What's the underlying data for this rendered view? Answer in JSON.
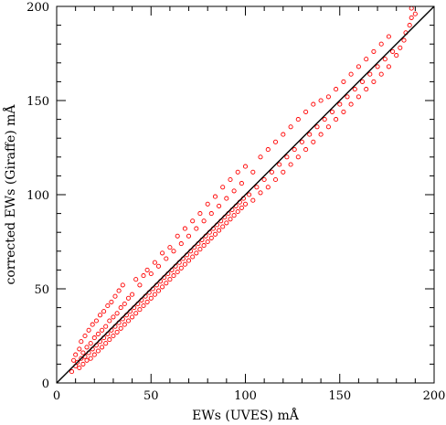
{
  "chart_data": {
    "type": "scatter",
    "xlabel": "EWs (UVES) mÅ",
    "ylabel": "corrected EWs (Giraffe) mÅ",
    "xlim": [
      0,
      200
    ],
    "ylim": [
      0,
      200
    ],
    "x_ticks": [
      "0",
      "50",
      "100",
      "150",
      "200"
    ],
    "y_ticks": [
      "0",
      "50",
      "100",
      "150",
      "200"
    ],
    "grid": false,
    "reference_line": {
      "from": [
        0,
        0
      ],
      "to": [
        200,
        200
      ],
      "color": "#000000"
    },
    "marker": {
      "shape": "open-circle",
      "color": "#ff0000"
    },
    "series": [
      {
        "color": "#ff0000",
        "points": [
          [
            8,
            6
          ],
          [
            9,
            12
          ],
          [
            10,
            9
          ],
          [
            10,
            15
          ],
          [
            11,
            11
          ],
          [
            12,
            8
          ],
          [
            12,
            18
          ],
          [
            13,
            13
          ],
          [
            13,
            22
          ],
          [
            14,
            10
          ],
          [
            14,
            16
          ],
          [
            15,
            14
          ],
          [
            15,
            25
          ],
          [
            16,
            12
          ],
          [
            16,
            19
          ],
          [
            17,
            16
          ],
          [
            17,
            28
          ],
          [
            18,
            13
          ],
          [
            18,
            21
          ],
          [
            19,
            18
          ],
          [
            19,
            31
          ],
          [
            20,
            15
          ],
          [
            20,
            24
          ],
          [
            21,
            20
          ],
          [
            21,
            33
          ],
          [
            22,
            17
          ],
          [
            22,
            26
          ],
          [
            23,
            22
          ],
          [
            23,
            36
          ],
          [
            24,
            19
          ],
          [
            24,
            28
          ],
          [
            25,
            24
          ],
          [
            25,
            38
          ],
          [
            26,
            21
          ],
          [
            26,
            30
          ],
          [
            27,
            26
          ],
          [
            27,
            41
          ],
          [
            28,
            23
          ],
          [
            28,
            33
          ],
          [
            29,
            28
          ],
          [
            29,
            43
          ],
          [
            30,
            25
          ],
          [
            30,
            35
          ],
          [
            31,
            30
          ],
          [
            31,
            46
          ],
          [
            32,
            27
          ],
          [
            32,
            37
          ],
          [
            33,
            32
          ],
          [
            33,
            49
          ],
          [
            34,
            29
          ],
          [
            34,
            40
          ],
          [
            35,
            34
          ],
          [
            35,
            52
          ],
          [
            36,
            31
          ],
          [
            36,
            42
          ],
          [
            37,
            36
          ],
          [
            38,
            33
          ],
          [
            38,
            45
          ],
          [
            39,
            38
          ],
          [
            40,
            35
          ],
          [
            40,
            47
          ],
          [
            41,
            40
          ],
          [
            42,
            37
          ],
          [
            42,
            55
          ],
          [
            43,
            42
          ],
          [
            44,
            39
          ],
          [
            44,
            52
          ],
          [
            45,
            44
          ],
          [
            46,
            41
          ],
          [
            46,
            57
          ],
          [
            47,
            46
          ],
          [
            48,
            43
          ],
          [
            48,
            60
          ],
          [
            49,
            48
          ],
          [
            50,
            45
          ],
          [
            50,
            58
          ],
          [
            51,
            50
          ],
          [
            52,
            47
          ],
          [
            52,
            64
          ],
          [
            53,
            52
          ],
          [
            54,
            49
          ],
          [
            54,
            62
          ],
          [
            55,
            54
          ],
          [
            56,
            51
          ],
          [
            56,
            69
          ],
          [
            57,
            56
          ],
          [
            58,
            53
          ],
          [
            58,
            66
          ],
          [
            59,
            58
          ],
          [
            60,
            55
          ],
          [
            60,
            72
          ],
          [
            61,
            60
          ],
          [
            62,
            57
          ],
          [
            62,
            70
          ],
          [
            63,
            62
          ],
          [
            64,
            59
          ],
          [
            64,
            78
          ],
          [
            65,
            64
          ],
          [
            66,
            61
          ],
          [
            66,
            74
          ],
          [
            67,
            66
          ],
          [
            68,
            63
          ],
          [
            68,
            82
          ],
          [
            69,
            68
          ],
          [
            70,
            65
          ],
          [
            70,
            78
          ],
          [
            71,
            70
          ],
          [
            72,
            67
          ],
          [
            72,
            86
          ],
          [
            73,
            72
          ],
          [
            74,
            69
          ],
          [
            74,
            82
          ],
          [
            75,
            74
          ],
          [
            76,
            71
          ],
          [
            76,
            90
          ],
          [
            77,
            76
          ],
          [
            78,
            73
          ],
          [
            78,
            86
          ],
          [
            79,
            78
          ],
          [
            80,
            75
          ],
          [
            80,
            95
          ],
          [
            81,
            80
          ],
          [
            82,
            77
          ],
          [
            82,
            90
          ],
          [
            83,
            82
          ],
          [
            84,
            79
          ],
          [
            84,
            99
          ],
          [
            85,
            84
          ],
          [
            86,
            81
          ],
          [
            86,
            94
          ],
          [
            87,
            86
          ],
          [
            88,
            83
          ],
          [
            88,
            104
          ],
          [
            89,
            88
          ],
          [
            90,
            85
          ],
          [
            90,
            98
          ],
          [
            91,
            90
          ],
          [
            92,
            87
          ],
          [
            92,
            108
          ],
          [
            93,
            92
          ],
          [
            94,
            89
          ],
          [
            94,
            102
          ],
          [
            95,
            94
          ],
          [
            96,
            91
          ],
          [
            96,
            112
          ],
          [
            97,
            96
          ],
          [
            98,
            93
          ],
          [
            98,
            106
          ],
          [
            99,
            98
          ],
          [
            100,
            95
          ],
          [
            100,
            115
          ],
          [
            102,
            100
          ],
          [
            104,
            97
          ],
          [
            104,
            112
          ],
          [
            106,
            104
          ],
          [
            108,
            101
          ],
          [
            108,
            120
          ],
          [
            110,
            108
          ],
          [
            112,
            104
          ],
          [
            112,
            124
          ],
          [
            114,
            112
          ],
          [
            116,
            108
          ],
          [
            116,
            128
          ],
          [
            118,
            116
          ],
          [
            120,
            112
          ],
          [
            120,
            132
          ],
          [
            122,
            120
          ],
          [
            124,
            116
          ],
          [
            124,
            136
          ],
          [
            126,
            124
          ],
          [
            128,
            120
          ],
          [
            128,
            140
          ],
          [
            130,
            128
          ],
          [
            132,
            124
          ],
          [
            132,
            144
          ],
          [
            134,
            132
          ],
          [
            136,
            128
          ],
          [
            136,
            148
          ],
          [
            138,
            136
          ],
          [
            140,
            132
          ],
          [
            140,
            150
          ],
          [
            142,
            140
          ],
          [
            144,
            136
          ],
          [
            144,
            152
          ],
          [
            146,
            144
          ],
          [
            148,
            140
          ],
          [
            148,
            156
          ],
          [
            150,
            148
          ],
          [
            152,
            144
          ],
          [
            152,
            160
          ],
          [
            154,
            152
          ],
          [
            156,
            148
          ],
          [
            156,
            164
          ],
          [
            158,
            156
          ],
          [
            160,
            152
          ],
          [
            160,
            168
          ],
          [
            162,
            160
          ],
          [
            164,
            156
          ],
          [
            164,
            172
          ],
          [
            166,
            164
          ],
          [
            168,
            160
          ],
          [
            168,
            176
          ],
          [
            170,
            168
          ],
          [
            172,
            164
          ],
          [
            172,
            180
          ],
          [
            174,
            172
          ],
          [
            176,
            168
          ],
          [
            176,
            184
          ],
          [
            178,
            176
          ],
          [
            180,
            174
          ],
          [
            182,
            178
          ],
          [
            184,
            182
          ],
          [
            185,
            186
          ],
          [
            187,
            190
          ],
          [
            188,
            194
          ],
          [
            190,
            196
          ],
          [
            188,
            199
          ]
        ]
      }
    ]
  }
}
